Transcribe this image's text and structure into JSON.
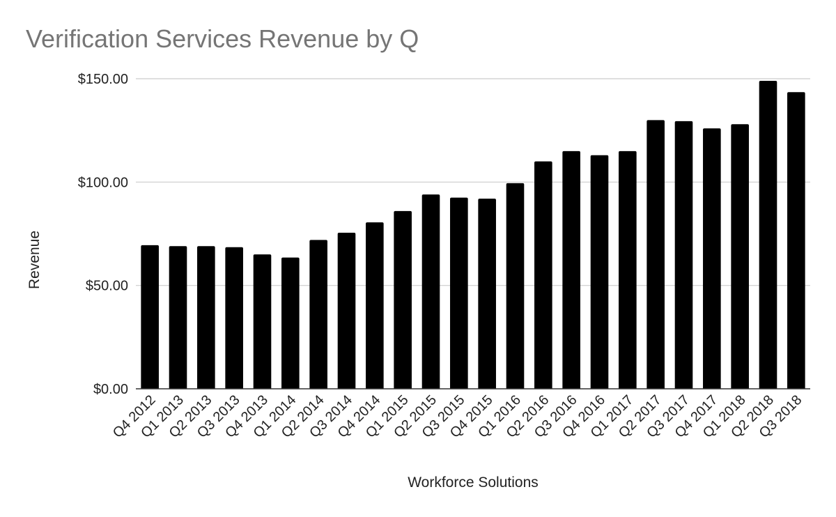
{
  "chart_data": {
    "type": "bar",
    "title": "Verification Services Revenue by Q",
    "xlabel": "Workforce Solutions",
    "ylabel": "Revenue",
    "ylim": [
      0,
      150
    ],
    "yticks": [
      0,
      50,
      100,
      150
    ],
    "ytick_labels": [
      "$0.00",
      "$50.00",
      "$100.00",
      "$150.00"
    ],
    "grid": true,
    "bar_color": "#000000",
    "categories": [
      "Q4 2012",
      "Q1 2013",
      "Q2 2013",
      "Q3 2013",
      "Q4 2013",
      "Q1 2014",
      "Q2 2014",
      "Q3 2014",
      "Q4 2014",
      "Q1 2015",
      "Q2 2015",
      "Q3 2015",
      "Q4 2015",
      "Q1 2016",
      "Q2 2016",
      "Q3 2016",
      "Q4 2016",
      "Q1 2017",
      "Q2 2017",
      "Q3 2017",
      "Q4 2017",
      "Q1 2018",
      "Q2 2018",
      "Q3 2018"
    ],
    "values": [
      69.5,
      69.0,
      69.0,
      68.5,
      65.0,
      63.5,
      72.0,
      75.5,
      80.5,
      86.0,
      94.0,
      92.5,
      92.0,
      99.5,
      110.0,
      115.0,
      113.0,
      115.0,
      130.0,
      129.5,
      126.0,
      128.0,
      149.0,
      143.5
    ]
  }
}
